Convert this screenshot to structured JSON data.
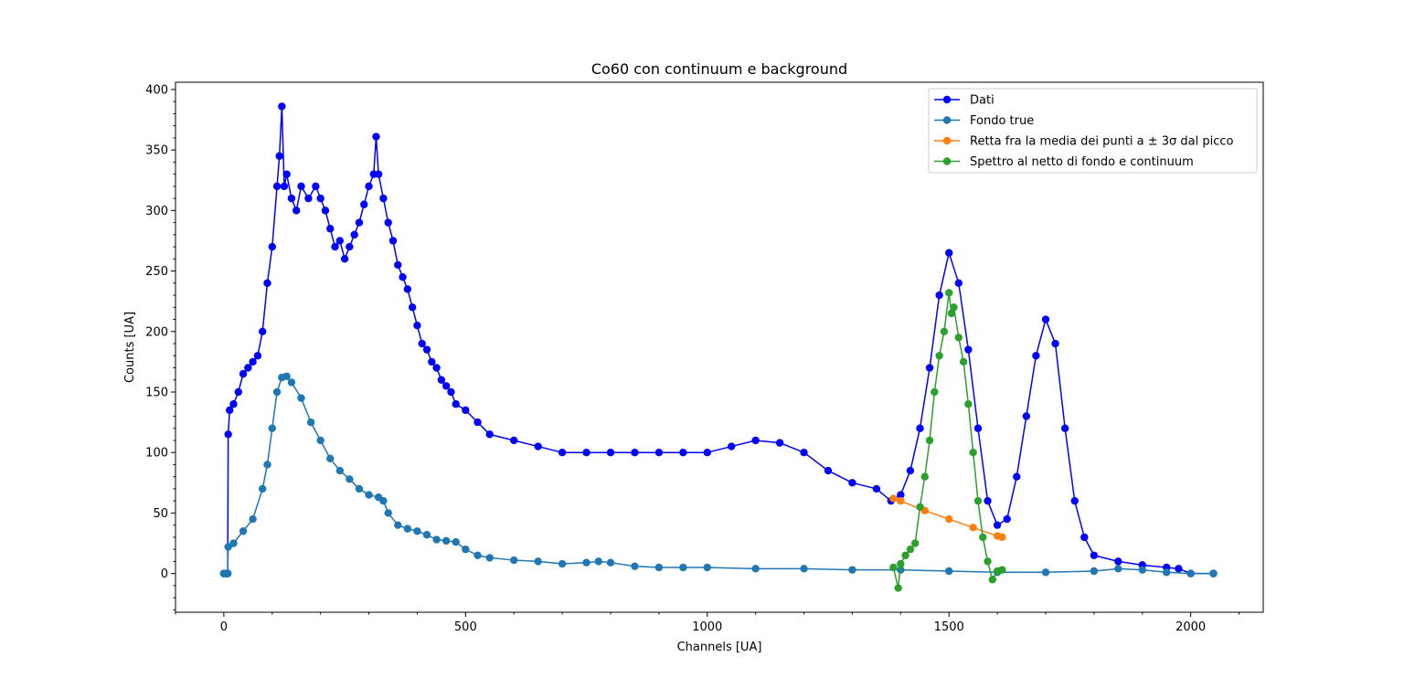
{
  "chart_data": {
    "type": "line",
    "title": "Co60 con continuum e background",
    "xlabel": "Channels [UA]",
    "ylabel": "Counts [UA]",
    "xlim": [
      -100,
      2150
    ],
    "ylim": [
      -32,
      406
    ],
    "xticks": [
      0,
      500,
      1000,
      1500,
      2000
    ],
    "yticks": [
      0,
      50,
      100,
      150,
      200,
      250,
      300,
      350,
      400
    ],
    "x_minor_step": 100,
    "y_minor_step": 10,
    "legend_position": "top-right",
    "series": [
      {
        "name": "Dati",
        "color": "#0000ff",
        "marker": "circle",
        "points": [
          [
            0,
            0
          ],
          [
            5,
            0
          ],
          [
            8,
            0
          ],
          [
            9,
            115
          ],
          [
            12,
            135
          ],
          [
            20,
            140
          ],
          [
            30,
            150
          ],
          [
            40,
            165
          ],
          [
            50,
            170
          ],
          [
            60,
            175
          ],
          [
            70,
            180
          ],
          [
            80,
            200
          ],
          [
            90,
            240
          ],
          [
            100,
            270
          ],
          [
            110,
            320
          ],
          [
            115,
            345
          ],
          [
            120,
            386
          ],
          [
            125,
            320
          ],
          [
            130,
            330
          ],
          [
            140,
            310
          ],
          [
            150,
            300
          ],
          [
            160,
            320
          ],
          [
            175,
            310
          ],
          [
            190,
            320
          ],
          [
            200,
            310
          ],
          [
            210,
            300
          ],
          [
            220,
            285
          ],
          [
            230,
            270
          ],
          [
            240,
            275
          ],
          [
            250,
            260
          ],
          [
            260,
            270
          ],
          [
            270,
            280
          ],
          [
            280,
            290
          ],
          [
            290,
            305
          ],
          [
            300,
            320
          ],
          [
            310,
            330
          ],
          [
            315,
            361
          ],
          [
            320,
            330
          ],
          [
            330,
            310
          ],
          [
            340,
            290
          ],
          [
            350,
            275
          ],
          [
            360,
            255
          ],
          [
            370,
            245
          ],
          [
            380,
            235
          ],
          [
            390,
            220
          ],
          [
            400,
            205
          ],
          [
            410,
            190
          ],
          [
            420,
            185
          ],
          [
            430,
            175
          ],
          [
            440,
            170
          ],
          [
            450,
            160
          ],
          [
            460,
            155
          ],
          [
            470,
            150
          ],
          [
            480,
            140
          ],
          [
            500,
            135
          ],
          [
            525,
            125
          ],
          [
            550,
            115
          ],
          [
            600,
            110
          ],
          [
            650,
            105
          ],
          [
            700,
            100
          ],
          [
            750,
            100
          ],
          [
            800,
            100
          ],
          [
            850,
            100
          ],
          [
            900,
            100
          ],
          [
            950,
            100
          ],
          [
            1000,
            100
          ],
          [
            1050,
            105
          ],
          [
            1100,
            110
          ],
          [
            1150,
            108
          ],
          [
            1200,
            100
          ],
          [
            1250,
            85
          ],
          [
            1300,
            75
          ],
          [
            1350,
            70
          ],
          [
            1380,
            60
          ],
          [
            1400,
            65
          ],
          [
            1420,
            85
          ],
          [
            1440,
            120
          ],
          [
            1460,
            170
          ],
          [
            1480,
            230
          ],
          [
            1500,
            265
          ],
          [
            1520,
            240
          ],
          [
            1540,
            185
          ],
          [
            1560,
            120
          ],
          [
            1580,
            60
          ],
          [
            1600,
            40
          ],
          [
            1620,
            45
          ],
          [
            1640,
            80
          ],
          [
            1660,
            130
          ],
          [
            1680,
            180
          ],
          [
            1700,
            210
          ],
          [
            1720,
            190
          ],
          [
            1740,
            120
          ],
          [
            1760,
            60
          ],
          [
            1780,
            30
          ],
          [
            1800,
            15
          ],
          [
            1850,
            10
          ],
          [
            1900,
            7
          ],
          [
            1950,
            5
          ],
          [
            1975,
            4
          ],
          [
            2000,
            0
          ],
          [
            2047,
            0
          ]
        ]
      },
      {
        "name": "Fondo true",
        "color": "#1f77b4",
        "marker": "circle",
        "points": [
          [
            0,
            0
          ],
          [
            5,
            0
          ],
          [
            8,
            0
          ],
          [
            9,
            22
          ],
          [
            20,
            25
          ],
          [
            40,
            35
          ],
          [
            60,
            45
          ],
          [
            80,
            70
          ],
          [
            90,
            90
          ],
          [
            100,
            120
          ],
          [
            110,
            150
          ],
          [
            120,
            162
          ],
          [
            130,
            163
          ],
          [
            140,
            158
          ],
          [
            160,
            145
          ],
          [
            180,
            125
          ],
          [
            200,
            110
          ],
          [
            220,
            95
          ],
          [
            240,
            85
          ],
          [
            260,
            78
          ],
          [
            280,
            70
          ],
          [
            300,
            65
          ],
          [
            320,
            63
          ],
          [
            330,
            60
          ],
          [
            340,
            50
          ],
          [
            360,
            40
          ],
          [
            380,
            37
          ],
          [
            400,
            35
          ],
          [
            420,
            32
          ],
          [
            440,
            28
          ],
          [
            460,
            27
          ],
          [
            480,
            26
          ],
          [
            500,
            20
          ],
          [
            525,
            15
          ],
          [
            550,
            13
          ],
          [
            600,
            11
          ],
          [
            650,
            10
          ],
          [
            700,
            8
          ],
          [
            750,
            9
          ],
          [
            775,
            10
          ],
          [
            800,
            9
          ],
          [
            850,
            6
          ],
          [
            900,
            5
          ],
          [
            950,
            5
          ],
          [
            1000,
            5
          ],
          [
            1100,
            4
          ],
          [
            1200,
            4
          ],
          [
            1300,
            3
          ],
          [
            1400,
            3
          ],
          [
            1500,
            2
          ],
          [
            1600,
            1
          ],
          [
            1700,
            1
          ],
          [
            1800,
            2
          ],
          [
            1850,
            4
          ],
          [
            1900,
            3
          ],
          [
            1950,
            1
          ],
          [
            2000,
            0
          ],
          [
            2047,
            0
          ]
        ]
      },
      {
        "name": "Retta fra la media dei punti a ± 3σ dal picco",
        "color": "#ff7f0e",
        "marker": "circle",
        "points": [
          [
            1385,
            62
          ],
          [
            1400,
            60
          ],
          [
            1450,
            52
          ],
          [
            1500,
            45
          ],
          [
            1550,
            38
          ],
          [
            1600,
            31
          ],
          [
            1610,
            30
          ]
        ]
      },
      {
        "name": "Spettro al netto di fondo e continuum",
        "color": "#2ca02c",
        "marker": "circle",
        "points": [
          [
            1385,
            5
          ],
          [
            1395,
            -12
          ],
          [
            1400,
            8
          ],
          [
            1410,
            15
          ],
          [
            1420,
            20
          ],
          [
            1430,
            25
          ],
          [
            1440,
            55
          ],
          [
            1450,
            80
          ],
          [
            1460,
            110
          ],
          [
            1470,
            150
          ],
          [
            1480,
            180
          ],
          [
            1490,
            200
          ],
          [
            1500,
            232
          ],
          [
            1505,
            215
          ],
          [
            1510,
            220
          ],
          [
            1520,
            195
          ],
          [
            1530,
            175
          ],
          [
            1540,
            140
          ],
          [
            1550,
            100
          ],
          [
            1560,
            60
          ],
          [
            1570,
            30
          ],
          [
            1580,
            10
          ],
          [
            1590,
            -5
          ],
          [
            1600,
            2
          ],
          [
            1610,
            3
          ]
        ]
      }
    ]
  }
}
